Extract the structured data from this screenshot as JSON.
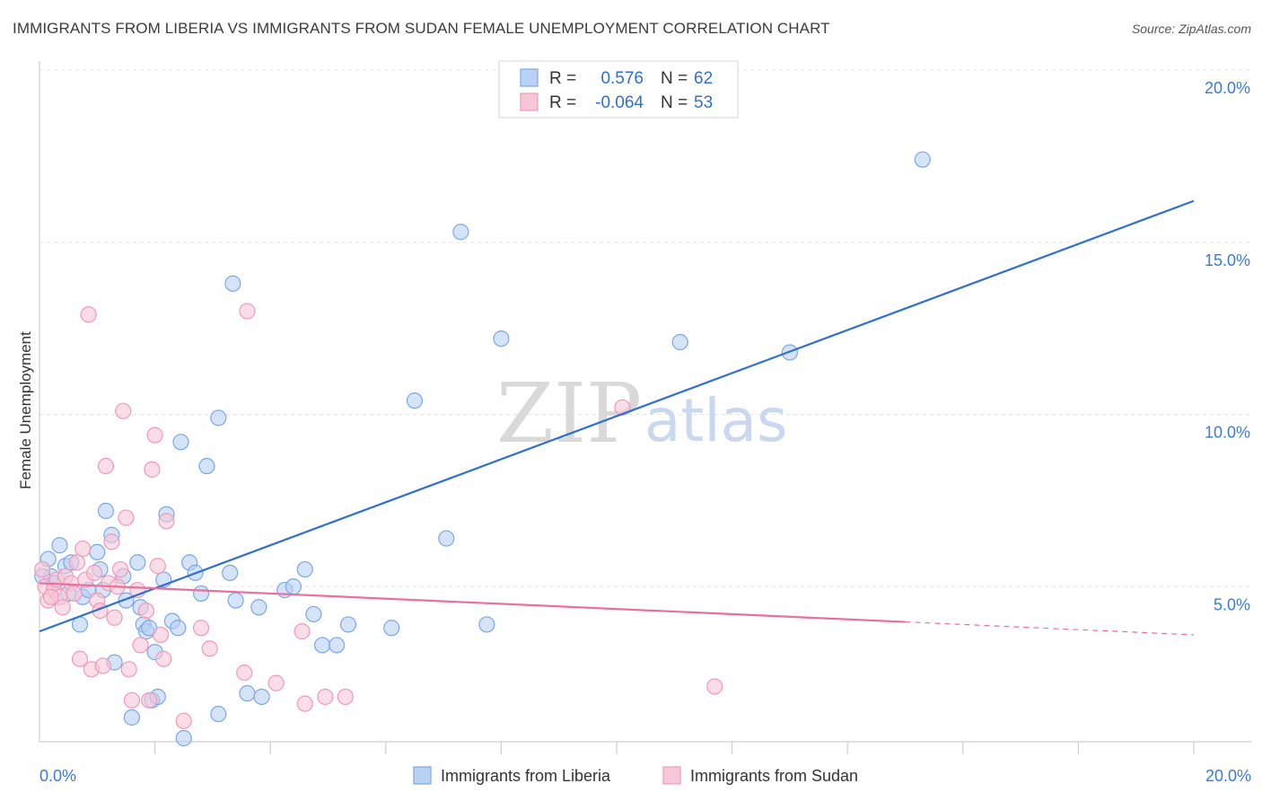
{
  "chart_data": {
    "type": "scatter",
    "title": "IMMIGRANTS FROM LIBERIA VS IMMIGRANTS FROM SUDAN FEMALE UNEMPLOYMENT CORRELATION CHART",
    "source": "Source: ZipAtlas.com",
    "xlabel": "",
    "ylabel": "Female Unemployment",
    "xlim": [
      0,
      20
    ],
    "ylim": [
      0,
      20
    ],
    "x_tick_labels": {
      "left": "0.0%",
      "right": "20.0%"
    },
    "y_ticks": [
      {
        "value": 5,
        "label": "5.0%"
      },
      {
        "value": 10,
        "label": "10.0%"
      },
      {
        "value": 15,
        "label": "15.0%"
      },
      {
        "value": 20,
        "label": "20.0%"
      }
    ],
    "watermark": {
      "part1": "ZIP",
      "part2": "atlas"
    },
    "legend_box": [
      {
        "r_label": "R =",
        "r_value": "0.576",
        "n_label": "N =",
        "n_value": "62"
      },
      {
        "r_label": "R =",
        "r_value": "-0.064",
        "n_label": "N =",
        "n_value": "53"
      }
    ],
    "series": [
      {
        "name": "Immigrants from Liberia",
        "color": "#7aa7e8",
        "fill": "#b9d1f3",
        "line_color": "#2f6fd0",
        "trend": {
          "x1": 0,
          "y1": 3.7,
          "x2": 20,
          "y2": 16.2,
          "dashed_from": null
        },
        "points": [
          [
            0.15,
            5.8
          ],
          [
            0.2,
            5.3
          ],
          [
            0.25,
            5.1
          ],
          [
            0.35,
            6.2
          ],
          [
            0.45,
            5.6
          ],
          [
            0.5,
            4.8
          ],
          [
            0.55,
            5.7
          ],
          [
            0.7,
            3.9
          ],
          [
            0.75,
            4.7
          ],
          [
            0.85,
            4.9
          ],
          [
            1.0,
            6.0
          ],
          [
            1.05,
            5.5
          ],
          [
            1.1,
            4.9
          ],
          [
            1.15,
            7.2
          ],
          [
            1.25,
            6.5
          ],
          [
            1.3,
            2.8
          ],
          [
            1.45,
            5.3
          ],
          [
            1.5,
            4.6
          ],
          [
            1.6,
            1.2
          ],
          [
            1.7,
            5.7
          ],
          [
            1.75,
            4.4
          ],
          [
            1.8,
            3.9
          ],
          [
            1.85,
            3.7
          ],
          [
            1.9,
            3.8
          ],
          [
            1.95,
            1.7
          ],
          [
            2.0,
            3.1
          ],
          [
            2.05,
            1.8
          ],
          [
            2.15,
            5.2
          ],
          [
            2.2,
            7.1
          ],
          [
            2.3,
            4.0
          ],
          [
            2.4,
            3.8
          ],
          [
            2.45,
            9.2
          ],
          [
            2.5,
            0.6
          ],
          [
            2.6,
            5.7
          ],
          [
            2.7,
            5.4
          ],
          [
            2.8,
            4.8
          ],
          [
            2.9,
            8.5
          ],
          [
            3.1,
            9.9
          ],
          [
            3.1,
            1.3
          ],
          [
            3.3,
            5.4
          ],
          [
            3.35,
            13.8
          ],
          [
            3.4,
            4.6
          ],
          [
            3.6,
            1.9
          ],
          [
            3.8,
            4.4
          ],
          [
            3.85,
            1.8
          ],
          [
            4.25,
            4.9
          ],
          [
            4.4,
            5.0
          ],
          [
            4.6,
            5.5
          ],
          [
            4.75,
            4.2
          ],
          [
            4.9,
            3.3
          ],
          [
            5.15,
            3.3
          ],
          [
            5.35,
            3.9
          ],
          [
            6.1,
            3.8
          ],
          [
            6.5,
            10.4
          ],
          [
            7.05,
            6.4
          ],
          [
            7.3,
            15.3
          ],
          [
            7.75,
            3.9
          ],
          [
            8.0,
            12.2
          ],
          [
            11.1,
            12.1
          ],
          [
            13.0,
            11.8
          ],
          [
            15.3,
            17.4
          ],
          [
            0.05,
            5.3
          ]
        ]
      },
      {
        "name": "Immigrants from Sudan",
        "color": "#ef9ab7",
        "fill": "#f7c6d7",
        "line_color": "#e8709a",
        "trend": {
          "x1": 0,
          "y1": 5.1,
          "x2": 20,
          "y2": 3.6,
          "dashed_from": 15.0
        },
        "points": [
          [
            0.05,
            5.5
          ],
          [
            0.1,
            5.0
          ],
          [
            0.15,
            4.6
          ],
          [
            0.25,
            4.9
          ],
          [
            0.3,
            5.2
          ],
          [
            0.35,
            4.7
          ],
          [
            0.4,
            4.4
          ],
          [
            0.45,
            5.3
          ],
          [
            0.55,
            5.1
          ],
          [
            0.6,
            4.8
          ],
          [
            0.65,
            5.7
          ],
          [
            0.7,
            2.9
          ],
          [
            0.75,
            6.1
          ],
          [
            0.8,
            5.2
          ],
          [
            0.85,
            12.9
          ],
          [
            0.9,
            2.6
          ],
          [
            0.95,
            5.4
          ],
          [
            1.0,
            4.6
          ],
          [
            1.05,
            4.3
          ],
          [
            1.1,
            2.7
          ],
          [
            1.15,
            8.5
          ],
          [
            1.2,
            5.1
          ],
          [
            1.25,
            6.3
          ],
          [
            1.3,
            4.1
          ],
          [
            1.35,
            5.0
          ],
          [
            1.4,
            5.5
          ],
          [
            1.45,
            10.1
          ],
          [
            1.5,
            7.0
          ],
          [
            1.55,
            2.6
          ],
          [
            1.6,
            1.7
          ],
          [
            1.7,
            4.9
          ],
          [
            1.75,
            3.3
          ],
          [
            1.85,
            4.3
          ],
          [
            1.9,
            1.7
          ],
          [
            1.95,
            8.4
          ],
          [
            2.0,
            9.4
          ],
          [
            2.05,
            5.6
          ],
          [
            2.1,
            3.6
          ],
          [
            2.15,
            2.9
          ],
          [
            2.2,
            6.9
          ],
          [
            2.5,
            1.1
          ],
          [
            2.8,
            3.8
          ],
          [
            2.95,
            3.2
          ],
          [
            3.55,
            2.5
          ],
          [
            3.6,
            13.0
          ],
          [
            4.1,
            2.2
          ],
          [
            4.55,
            3.7
          ],
          [
            4.6,
            1.6
          ],
          [
            4.95,
            1.8
          ],
          [
            5.3,
            1.8
          ],
          [
            10.1,
            10.2
          ],
          [
            11.7,
            2.1
          ],
          [
            0.2,
            4.7
          ]
        ]
      }
    ],
    "bottom_legend": [
      "Immigrants from Liberia",
      "Immigrants from Sudan"
    ]
  }
}
